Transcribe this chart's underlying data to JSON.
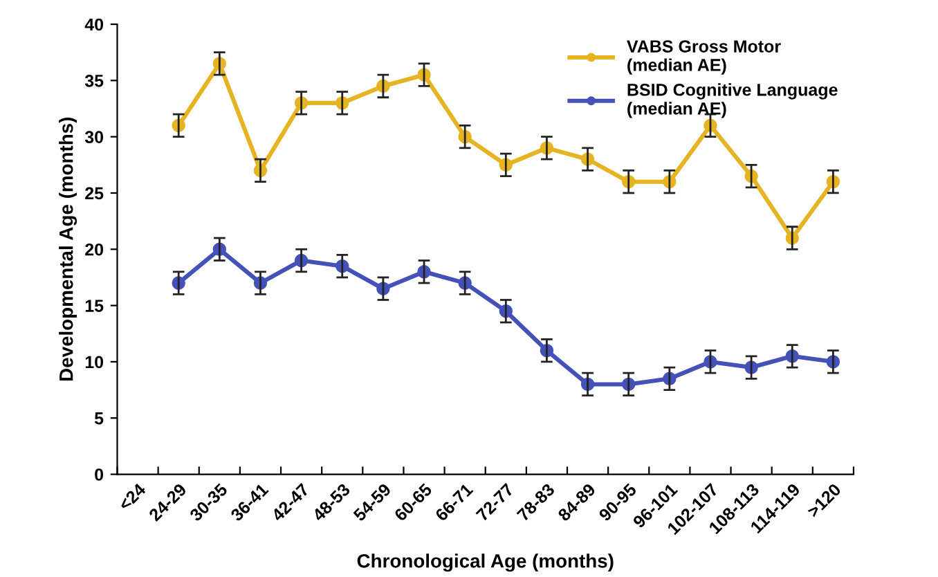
{
  "chart_data": {
    "type": "line",
    "xlabel": "Chronological Age (months)",
    "ylabel": "Developmental Age (months)",
    "categories": [
      "<24",
      "24-29",
      "30-35",
      "36-41",
      "42-47",
      "48-53",
      "54-59",
      "60-65",
      "66-71",
      "72-77",
      "78-83",
      "84-89",
      "90-95",
      "96-101",
      "102-107",
      "108-113",
      "114-119",
      ">120"
    ],
    "series": [
      {
        "name": "VABS Gross Motor\n(median AE)",
        "color": "#e6b422",
        "values": [
          null,
          31,
          36.5,
          27,
          33,
          33,
          34.5,
          35.5,
          30,
          27.5,
          29,
          28,
          26,
          26,
          31,
          26.5,
          21,
          26
        ],
        "errors": [
          null,
          1,
          1,
          1,
          1,
          1,
          1,
          1,
          1,
          1,
          1,
          1,
          1,
          1,
          1,
          1,
          1,
          1
        ]
      },
      {
        "name": "BSID Cognitive Language\n(median AE)",
        "color": "#4452b8",
        "values": [
          null,
          17,
          20,
          17,
          19,
          18.5,
          16.5,
          18,
          17,
          14.5,
          11,
          8,
          8,
          8.5,
          10,
          9.5,
          10.5,
          10
        ],
        "errors": [
          null,
          1,
          1,
          1,
          1,
          1,
          1,
          1,
          1,
          1,
          1,
          1,
          1,
          1,
          1,
          1,
          1,
          1
        ]
      }
    ],
    "ylim": [
      0,
      40
    ],
    "yticks": [
      0,
      5,
      10,
      15,
      20,
      25,
      30,
      35,
      40
    ],
    "grid": false,
    "legend": "top right",
    "marker": "circle",
    "line_style": "solid"
  }
}
